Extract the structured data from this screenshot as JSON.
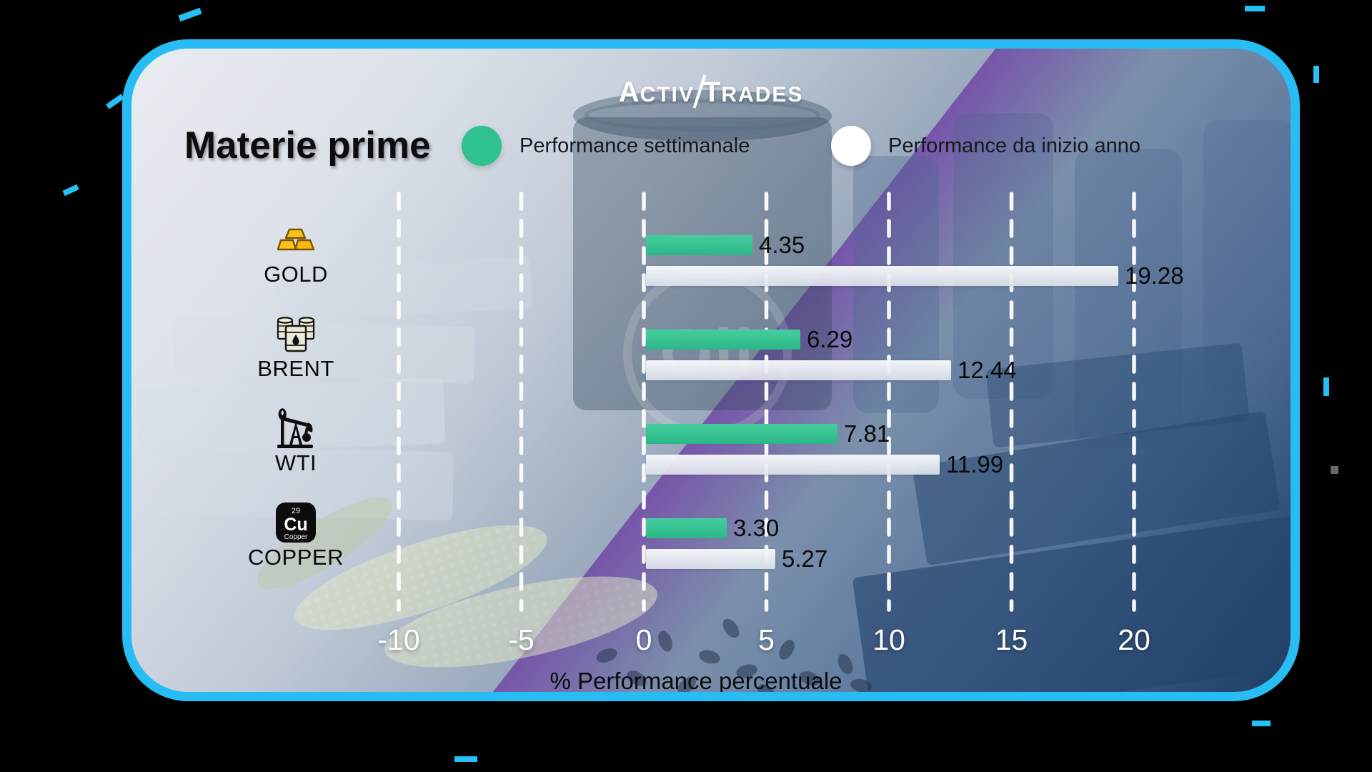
{
  "brand": {
    "word1": "Activ",
    "word2": "Trades"
  },
  "header": {
    "title": "Materie prime",
    "legend": [
      {
        "name": "weekly",
        "label": "Performance settimanale",
        "color": "#2fc28f"
      },
      {
        "name": "ytd",
        "label": "Performance da inizio anno",
        "color": "#ffffff"
      }
    ]
  },
  "chart_data": {
    "type": "bar",
    "orientation": "horizontal",
    "title": "Materie prime",
    "categories": [
      "GOLD",
      "BRENT",
      "WTI",
      "COPPER"
    ],
    "series": [
      {
        "name": "Performance settimanale",
        "color": "#2fc28f",
        "values": [
          4.35,
          6.29,
          7.81,
          3.3
        ]
      },
      {
        "name": "Performance da inizio anno",
        "color": "#e9ecf1",
        "values": [
          19.28,
          12.44,
          11.99,
          5.27
        ]
      }
    ],
    "value_labels": [
      [
        "4.35",
        "19.28"
      ],
      [
        "6.29",
        "12.44"
      ],
      [
        "7.81",
        "11.99"
      ],
      [
        "3.30",
        "5.27"
      ]
    ],
    "xlabel": "% Performance percentuale",
    "ylabel": "",
    "xlim": [
      -10,
      21
    ],
    "xticks": [
      -10,
      -5,
      0,
      5,
      10,
      15,
      20
    ],
    "grid": "dashed-white-vertical",
    "legend_position": "top",
    "icons": [
      "gold-bars",
      "oil-barrels",
      "oil-pump",
      "copper-element"
    ]
  },
  "copper_tile": {
    "number": "29",
    "symbol": "Cu",
    "name": "Copper"
  },
  "watermark": {
    "text": "Oil"
  }
}
